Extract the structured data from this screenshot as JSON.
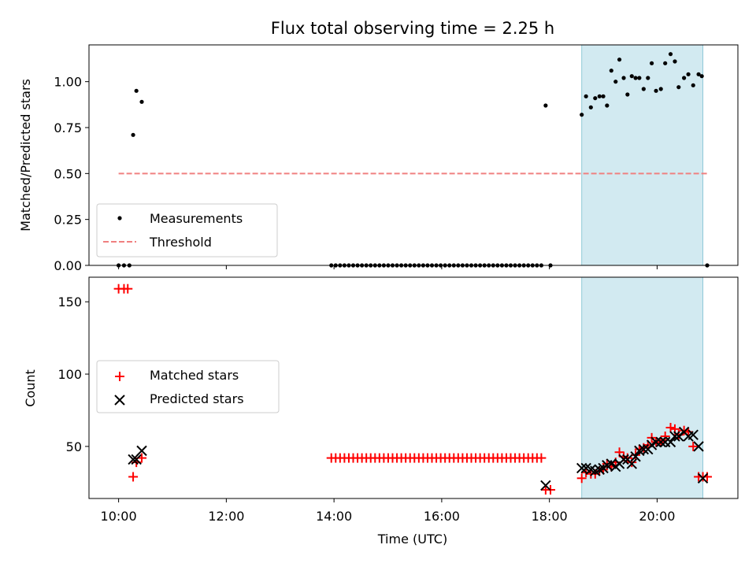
{
  "chart_data": {
    "title": "Flux total observing time = 2.25 h",
    "xlabel": "Time (UTC)",
    "x_ticks": [
      "10:00",
      "12:00",
      "14:00",
      "16:00",
      "18:00",
      "20:00"
    ],
    "x_tick_hours": [
      10,
      12,
      14,
      16,
      18,
      20
    ],
    "xlim_hours": [
      9.45,
      21.5
    ],
    "shaded_interval_hours": [
      18.6,
      20.85
    ],
    "shade_color": "#add8e6",
    "panels": [
      {
        "type": "scatter",
        "ylabel": "Matched/Predicted stars",
        "ylim": [
          0,
          1.2
        ],
        "y_ticks": [
          "0.00",
          "0.25",
          "0.50",
          "0.75",
          "1.00"
        ],
        "y_tick_values": [
          0,
          0.25,
          0.5,
          0.75,
          1.0
        ],
        "legend": {
          "position": "lower-left",
          "entries": [
            "Measurements",
            "Threshold"
          ]
        },
        "series": [
          {
            "name": "Measurements",
            "marker": "dot",
            "color": "#000000",
            "x_hours": [
              10.0,
              10.1,
              10.2,
              10.27,
              10.33,
              10.43,
              17.93,
              18.6,
              18.68,
              18.77,
              18.85,
              18.93,
              19.0,
              19.07,
              19.15,
              19.23,
              19.3,
              19.38,
              19.45,
              19.53,
              19.6,
              19.67,
              19.75,
              19.83,
              19.9,
              19.98,
              20.07,
              20.15,
              20.25,
              20.33,
              20.4,
              20.5,
              20.58,
              20.67,
              20.77,
              20.83
            ],
            "y": [
              0.0,
              0.0,
              0.0,
              0.71,
              0.95,
              0.89,
              0.87,
              0.82,
              0.92,
              0.86,
              0.91,
              0.92,
              0.92,
              0.87,
              1.06,
              1.0,
              1.12,
              1.02,
              0.93,
              1.03,
              1.02,
              1.02,
              0.96,
              1.02,
              1.1,
              0.95,
              0.96,
              1.1,
              1.15,
              1.11,
              0.97,
              1.02,
              1.04,
              0.98,
              1.04,
              1.03
            ]
          },
          {
            "name": "Measurements (zero run)",
            "marker": "dot",
            "color": "#000000",
            "x_range_hours": [
              13.95,
              17.85
            ],
            "count": 49,
            "y_value": 0.0,
            "extra_x_hours": [
              18.02,
              20.93
            ],
            "extra_y": [
              0.0,
              0.0
            ]
          },
          {
            "name": "Threshold",
            "style": "dashed",
            "color": "#f08080",
            "x_hours": [
              10.0,
              20.93
            ],
            "y": [
              0.5,
              0.5
            ]
          }
        ]
      },
      {
        "type": "scatter",
        "ylabel": "Count",
        "ylim": [
          14,
          167
        ],
        "y_ticks": [
          "50",
          "100",
          "150"
        ],
        "y_tick_values": [
          50,
          100,
          150
        ],
        "legend": {
          "position": "center-left",
          "entries": [
            "Matched stars",
            "Predicted stars"
          ]
        },
        "series": [
          {
            "name": "Matched stars",
            "marker": "plus",
            "color": "#ff0000",
            "x_hours": [
              10.0,
              10.1,
              10.17,
              10.27,
              10.33,
              10.43,
              17.93,
              18.02,
              18.6,
              18.68,
              18.77,
              18.85,
              18.93,
              19.0,
              19.07,
              19.15,
              19.23,
              19.3,
              19.38,
              19.45,
              19.53,
              19.6,
              19.67,
              19.75,
              19.83,
              19.9,
              19.98,
              20.07,
              20.15,
              20.25,
              20.33,
              20.4,
              20.5,
              20.58,
              20.67,
              20.77,
              20.85,
              20.93
            ],
            "y": [
              159,
              159,
              159,
              29,
              39,
              42,
              20,
              20,
              28,
              32,
              31,
              31,
              33,
              34,
              38,
              36,
              39,
              46,
              43,
              42,
              39,
              44,
              48,
              49,
              51,
              56,
              53,
              53,
              57,
              63,
              62,
              58,
              61,
              60,
              50,
              29,
              29,
              29
            ]
          },
          {
            "name": "Matched stars (constant run)",
            "marker": "plus",
            "color": "#ff0000",
            "x_range_hours": [
              13.95,
              17.85
            ],
            "count": 49,
            "y_value": 42
          },
          {
            "name": "Predicted stars",
            "marker": "x",
            "color": "#000000",
            "x_hours": [
              10.27,
              10.33,
              10.43,
              17.93,
              18.6,
              18.68,
              18.77,
              18.85,
              18.93,
              19.0,
              19.07,
              19.15,
              19.23,
              19.3,
              19.38,
              19.45,
              19.53,
              19.6,
              19.67,
              19.75,
              19.83,
              19.9,
              19.98,
              20.07,
              20.15,
              20.25,
              20.33,
              20.4,
              20.5,
              20.58,
              20.67,
              20.77,
              20.85
            ],
            "y": [
              41,
              41,
              47,
              23,
              35,
              35,
              34,
              33,
              34,
              35,
              37,
              38,
              36,
              38,
              41,
              41,
              38,
              43,
              47,
              48,
              48,
              51,
              53,
              53,
              53,
              53,
              57,
              57,
              60,
              57,
              58,
              50,
              28
            ]
          }
        ]
      }
    ]
  }
}
